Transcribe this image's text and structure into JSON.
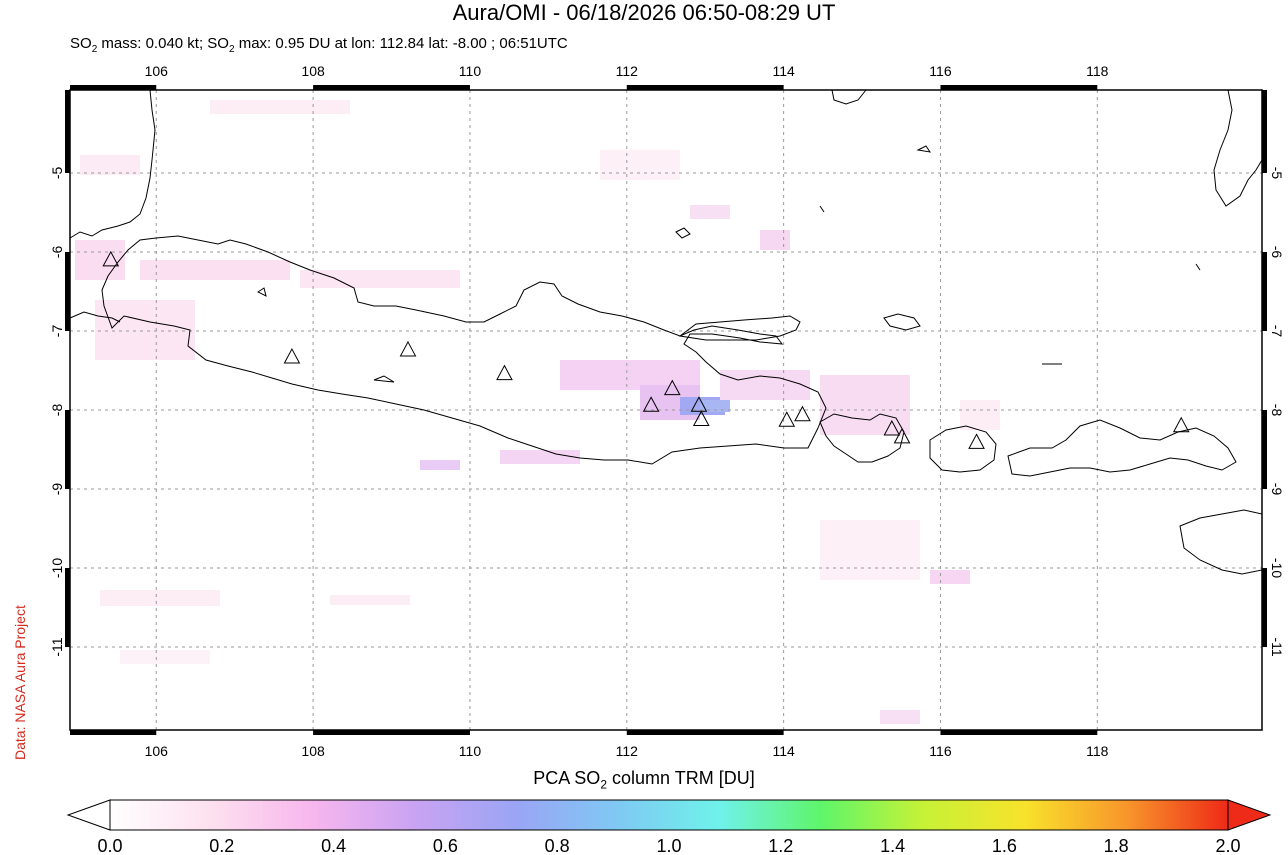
{
  "title": "Aura/OMI - 06/18/2026 06:50-08:29 UT",
  "subtitle": {
    "mass_prefix": "SO",
    "mass_sub": "2",
    "mass_text": " mass: 0.040 kt; SO",
    "max_sub": "2",
    "max_text": " max: 0.95 DU at lon: 112.84 lat: -8.00 ; 06:51UTC"
  },
  "credit": "Data: NASA Aura Project",
  "map": {
    "lon_range": [
      104.9,
      120.1
    ],
    "lat_range": [
      -12.05,
      -3.95
    ],
    "lon_ticks": [
      106,
      108,
      110,
      112,
      114,
      116,
      118
    ],
    "lon_tick_labels": [
      "106",
      "108",
      "110",
      "112",
      "114",
      "116",
      "118"
    ],
    "lat_ticks": [
      -5,
      -6,
      -7,
      -8,
      -9,
      -10,
      -11
    ],
    "lat_tick_labels": [
      "-5",
      "-6",
      "-7",
      "-8",
      "-9",
      "-10",
      "-11"
    ],
    "grid": true,
    "volcanoes": [
      {
        "lon": 105.42,
        "lat": -6.1
      },
      {
        "lon": 107.73,
        "lat": -7.33
      },
      {
        "lon": 109.21,
        "lat": -7.24
      },
      {
        "lon": 110.44,
        "lat": -7.54
      },
      {
        "lon": 112.31,
        "lat": -7.94
      },
      {
        "lon": 112.58,
        "lat": -7.73
      },
      {
        "lon": 112.92,
        "lat": -7.94
      },
      {
        "lon": 112.95,
        "lat": -8.12
      },
      {
        "lon": 114.04,
        "lat": -8.13
      },
      {
        "lon": 114.24,
        "lat": -8.06
      },
      {
        "lon": 115.38,
        "lat": -8.24
      },
      {
        "lon": 115.51,
        "lat": -8.34
      },
      {
        "lon": 116.46,
        "lat": -8.41
      },
      {
        "lon": 119.07,
        "lat": -8.2
      }
    ],
    "so2_max": {
      "lon": 112.84,
      "lat": -8.0,
      "value": 0.95
    }
  },
  "colorbar": {
    "title_prefix": "PCA SO",
    "title_sub": "2",
    "title_suffix": " column TRM [DU]",
    "min": 0.0,
    "max": 2.0,
    "tick_labels": [
      "0.0",
      "0.2",
      "0.4",
      "0.6",
      "0.8",
      "1.0",
      "1.2",
      "1.4",
      "1.6",
      "1.8",
      "2.0"
    ],
    "colors": [
      "#ffffff",
      "#fde0ef",
      "#f7b6ee",
      "#c9a3f2",
      "#9aa5f5",
      "#7fc9f3",
      "#6ff2ea",
      "#5ff56a",
      "#c6f236",
      "#f8e22b",
      "#f8962b",
      "#ee2a18"
    ]
  }
}
